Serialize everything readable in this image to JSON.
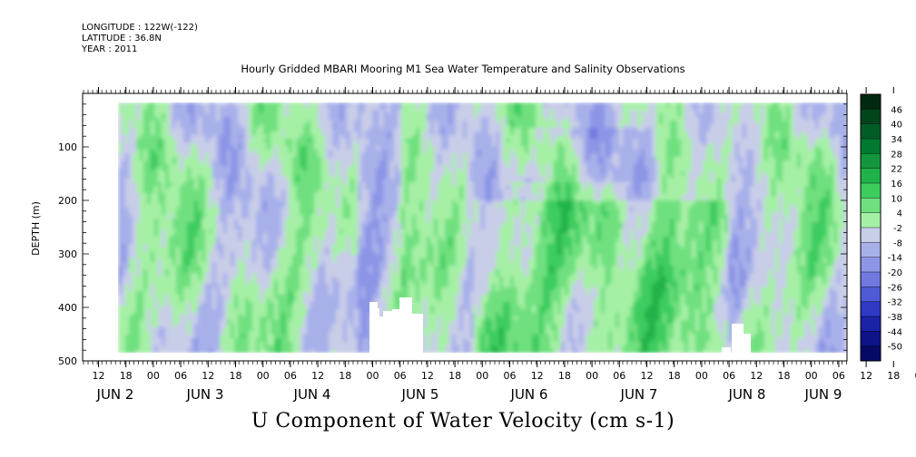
{
  "header": {
    "longitude": "LONGITUDE : 122W(-122)",
    "latitude": "LATITUDE : 36.8N",
    "year": "YEAR : 2011"
  },
  "chart_data": {
    "type": "heatmap",
    "title": "Hourly Gridded MBARI Mooring M1 Sea Water Temperature and Salinity Observations",
    "xlabel": "U Component of Water Velocity (cm s-1)",
    "ylabel": "DEPTH (m)",
    "ylim": [
      500,
      0
    ],
    "y_ticks": [
      100,
      200,
      300,
      400,
      500
    ],
    "x_hour_ticks": [
      "12",
      "18",
      "00",
      "06",
      "12",
      "18",
      "00",
      "06",
      "12",
      "18",
      "00",
      "06",
      "12",
      "18",
      "00",
      "06",
      "12",
      "18",
      "00",
      "06",
      "12",
      "18",
      "00",
      "06",
      "12",
      "18",
      "00",
      "06",
      "12",
      "18",
      "00",
      "06"
    ],
    "x_day_labels": [
      "JUN  2",
      "JUN  3",
      "JUN  4",
      "JUN  5",
      "JUN  6",
      "JUN  7",
      "JUN  8",
      "JUN  9"
    ],
    "colorbar_levels": [
      "46",
      "40",
      "34",
      "28",
      "22",
      "16",
      "10",
      "4",
      "-2",
      "-8",
      "-14",
      "-20",
      "-26",
      "-32",
      "-38",
      "-44",
      "-50"
    ],
    "colorbar_range": [
      -50,
      50
    ],
    "colorbar_colors": [
      "#002a10",
      "#00451c",
      "#005d26",
      "#007a30",
      "#14963c",
      "#20b24a",
      "#3dcc5e",
      "#6fe07f",
      "#a6f0a6",
      "#c8cde8",
      "#a8b0ea",
      "#8c95e6",
      "#6f79e0",
      "#4f5ad6",
      "#2f39c4",
      "#1a22a8",
      "#0d1488",
      "#060a66"
    ]
  }
}
